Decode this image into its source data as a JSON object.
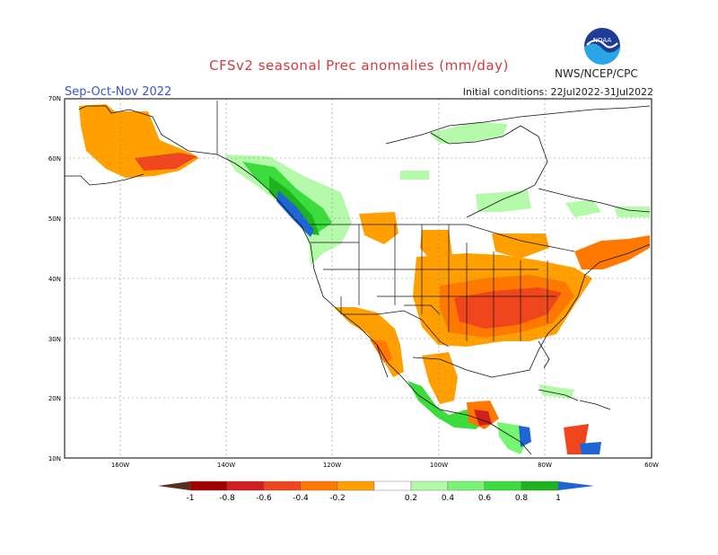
{
  "title": "CFSv2 seasonal Prec anomalies (mm/day)",
  "season": "Sep-Oct-Nov 2022",
  "initial_conditions": "Initial conditions: 22Jul2022-31Jul2022",
  "agency": "NWS/NCEP/CPC",
  "logo_text": "NOAA",
  "lat_labels": [
    "70N",
    "60N",
    "50N",
    "40N",
    "30N",
    "20N",
    "10N"
  ],
  "lon_labels": [
    "160W",
    "140W",
    "120W",
    "100W",
    "80W",
    "60W"
  ],
  "legend": {
    "labels": [
      "-1",
      "-0.8",
      "-0.6",
      "-0.4",
      "-0.2",
      "0.2",
      "0.4",
      "0.6",
      "0.8",
      "1"
    ],
    "colors": [
      "#5a2e1e",
      "#a00000",
      "#d21e1e",
      "#f0461e",
      "#ff7800",
      "#ffa000",
      "#ffffff",
      "#b4faaa",
      "#78f573",
      "#3cdc3c",
      "#1eb41e",
      "#1e64d2"
    ]
  },
  "colors": {
    "dry_light": "#ffa000",
    "dry_mid": "#ff7800",
    "dry_strong": "#f0461e",
    "wet_light": "#b4faaa",
    "wet_mid": "#78f573",
    "wet_strong": "#1eb41e",
    "wet_extreme": "#1e64d2"
  }
}
